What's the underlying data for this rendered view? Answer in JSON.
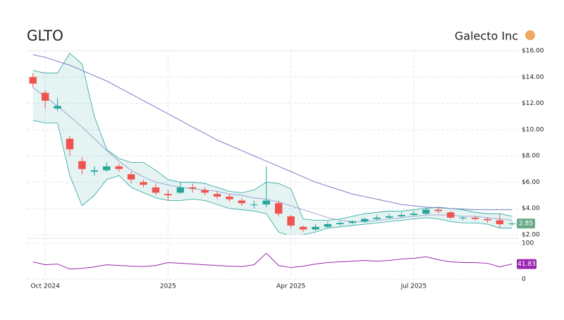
{
  "title": "GLTO",
  "company": "Galecto Inc",
  "chart_data": {
    "type": "candlestick",
    "categories": [
      null,
      "Oct 2024",
      null,
      null,
      null,
      null,
      null,
      null,
      null,
      null,
      null,
      "2025",
      null,
      null,
      null,
      null,
      null,
      null,
      null,
      null,
      null,
      "Apr 2025",
      null,
      null,
      null,
      null,
      null,
      null,
      null,
      null,
      null,
      "Jul 2025",
      null,
      null,
      null,
      null,
      null,
      null,
      null,
      null
    ],
    "open": [
      14.0,
      12.8,
      11.6,
      9.3,
      7.6,
      6.8,
      6.9,
      7.2,
      6.6,
      6.0,
      5.6,
      5.1,
      5.2,
      5.6,
      5.4,
      5.1,
      4.9,
      4.6,
      4.3,
      4.3,
      4.4,
      3.4,
      2.6,
      2.4,
      2.6,
      2.8,
      2.9,
      3.0,
      3.2,
      3.3,
      3.4,
      3.5,
      3.6,
      3.9,
      3.7,
      3.3,
      3.3,
      3.2,
      3.1,
      2.8
    ],
    "high": [
      14.3,
      13.0,
      12.4,
      9.5,
      7.9,
      7.2,
      7.5,
      7.4,
      6.8,
      6.2,
      5.9,
      5.4,
      6.0,
      5.9,
      5.6,
      5.3,
      5.1,
      4.8,
      4.6,
      7.2,
      4.6,
      3.5,
      2.7,
      2.8,
      3.0,
      3.0,
      3.1,
      3.3,
      3.5,
      3.6,
      3.7,
      3.8,
      4.1,
      4.0,
      3.8,
      3.4,
      3.4,
      3.3,
      3.6,
      3.0
    ],
    "low": [
      13.2,
      11.6,
      11.4,
      8.0,
      6.6,
      6.5,
      6.8,
      6.8,
      5.9,
      5.6,
      5.0,
      4.6,
      5.1,
      5.2,
      5.0,
      4.7,
      4.5,
      4.2,
      4.0,
      4.1,
      3.4,
      2.5,
      2.2,
      2.3,
      2.5,
      2.7,
      2.8,
      2.9,
      3.1,
      3.2,
      3.3,
      3.4,
      3.5,
      3.6,
      3.2,
      3.1,
      3.1,
      2.9,
      2.5,
      2.7
    ],
    "close": [
      13.5,
      12.2,
      11.8,
      8.5,
      7.0,
      6.9,
      7.2,
      7.0,
      6.2,
      5.8,
      5.2,
      5.0,
      5.6,
      5.5,
      5.2,
      4.9,
      4.7,
      4.4,
      4.3,
      4.6,
      3.6,
      2.7,
      2.4,
      2.6,
      2.8,
      2.9,
      3.0,
      3.2,
      3.3,
      3.4,
      3.5,
      3.6,
      3.9,
      3.8,
      3.3,
      3.3,
      3.2,
      3.1,
      2.8,
      2.85
    ],
    "up_color": "#26a69a",
    "down_color": "#ef5350",
    "bollinger_upper": [
      14.5,
      14.3,
      14.3,
      15.8,
      15.0,
      11.0,
      8.5,
      7.8,
      7.5,
      7.5,
      6.9,
      6.2,
      6.0,
      6.0,
      5.9,
      5.6,
      5.3,
      5.2,
      5.4,
      6.0,
      5.9,
      5.5,
      3.2,
      3.1,
      3.1,
      3.2,
      3.4,
      3.6,
      3.7,
      3.8,
      3.8,
      3.9,
      4.0,
      4.1,
      4.0,
      3.9,
      3.7,
      3.6,
      3.6,
      3.4
    ],
    "bollinger_lower": [
      10.7,
      10.5,
      10.5,
      6.5,
      4.2,
      5.0,
      6.2,
      6.5,
      5.6,
      5.2,
      4.8,
      4.6,
      4.6,
      4.7,
      4.6,
      4.3,
      4.0,
      3.9,
      3.8,
      3.6,
      2.2,
      1.9,
      2.0,
      2.2,
      2.5,
      2.6,
      2.7,
      2.8,
      2.9,
      3.0,
      3.1,
      3.2,
      3.3,
      3.2,
      3.0,
      2.9,
      2.9,
      2.8,
      2.5,
      2.5
    ],
    "bollinger_color": "#26a69a",
    "sma_long": [
      15.7,
      15.5,
      15.2,
      14.9,
      14.5,
      14.1,
      13.7,
      13.2,
      12.7,
      12.2,
      11.7,
      11.2,
      10.7,
      10.2,
      9.7,
      9.2,
      8.8,
      8.4,
      8.0,
      7.6,
      7.2,
      6.8,
      6.4,
      6.0,
      5.7,
      5.4,
      5.1,
      4.9,
      4.7,
      4.5,
      4.3,
      4.2,
      4.1,
      4.05,
      4.0,
      3.95,
      3.9,
      3.9,
      3.9,
      3.9
    ],
    "sma_long_color": "#7b7fc4",
    "sma_short": [
      13.2,
      12.5,
      11.8,
      11.0,
      10.2,
      9.3,
      8.4,
      7.6,
      6.9,
      6.4,
      6.0,
      5.8,
      5.6,
      5.5,
      5.4,
      5.3,
      5.1,
      5.0,
      4.8,
      4.7,
      4.5,
      4.2,
      3.9,
      3.6,
      3.3,
      3.1,
      3.0,
      3.0,
      3.1,
      3.2,
      3.3,
      3.4,
      3.5,
      3.5,
      3.5,
      3.4,
      3.4,
      3.3,
      3.2,
      3.1
    ],
    "sma_short_color": "#8d92c9",
    "ylim": [
      2,
      16
    ],
    "yticks": [
      {
        "value": 2,
        "label": "$2.00"
      },
      {
        "value": 4,
        "label": "$4.00"
      },
      {
        "value": 6,
        "label": "$6.00"
      },
      {
        "value": 8,
        "label": "$8.00"
      },
      {
        "value": 10,
        "label": "$10.00"
      },
      {
        "value": 12,
        "label": "$12.00"
      },
      {
        "value": 14,
        "label": "$14.00"
      },
      {
        "value": 16,
        "label": "$16.00"
      }
    ],
    "price_tag_color": "#6aaa8a",
    "grid": true,
    "rsi": {
      "values": [
        48,
        40,
        42,
        28,
        30,
        34,
        40,
        38,
        36,
        35,
        38,
        46,
        44,
        42,
        40,
        38,
        36,
        35,
        40,
        72,
        38,
        32,
        36,
        42,
        46,
        48,
        50,
        52,
        50,
        52,
        56,
        58,
        62,
        54,
        48,
        46,
        46,
        44,
        34,
        41.83
      ],
      "color": "#9c27b0",
      "ylim": [
        0,
        100
      ],
      "yticks": [
        0,
        100
      ]
    }
  }
}
